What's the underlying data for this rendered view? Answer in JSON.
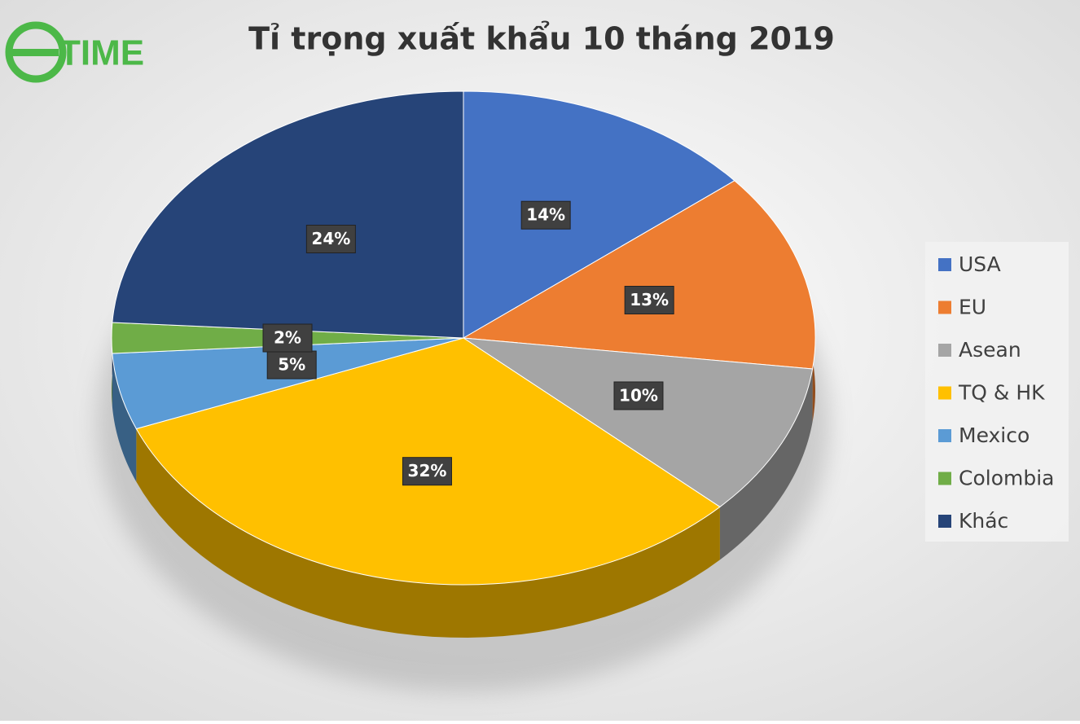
{
  "logo": "TIME",
  "chart_data": {
    "type": "pie",
    "title": "Tỉ trọng xuất khẩu 10 tháng 2019",
    "categories": [
      "USA",
      "EU",
      "Asean",
      "TQ & HK",
      "Mexico",
      "Colombia",
      "Khác"
    ],
    "values": [
      14,
      13,
      10,
      32,
      5,
      2,
      24
    ],
    "value_labels": [
      "14%",
      "13%",
      "10%",
      "32%",
      "5%",
      "2%",
      "24%"
    ],
    "colors": [
      "#4472c4",
      "#ed7d31",
      "#a5a5a5",
      "#ffc000",
      "#5b9bd5",
      "#70ad47",
      "#264478"
    ],
    "legend": "right"
  }
}
